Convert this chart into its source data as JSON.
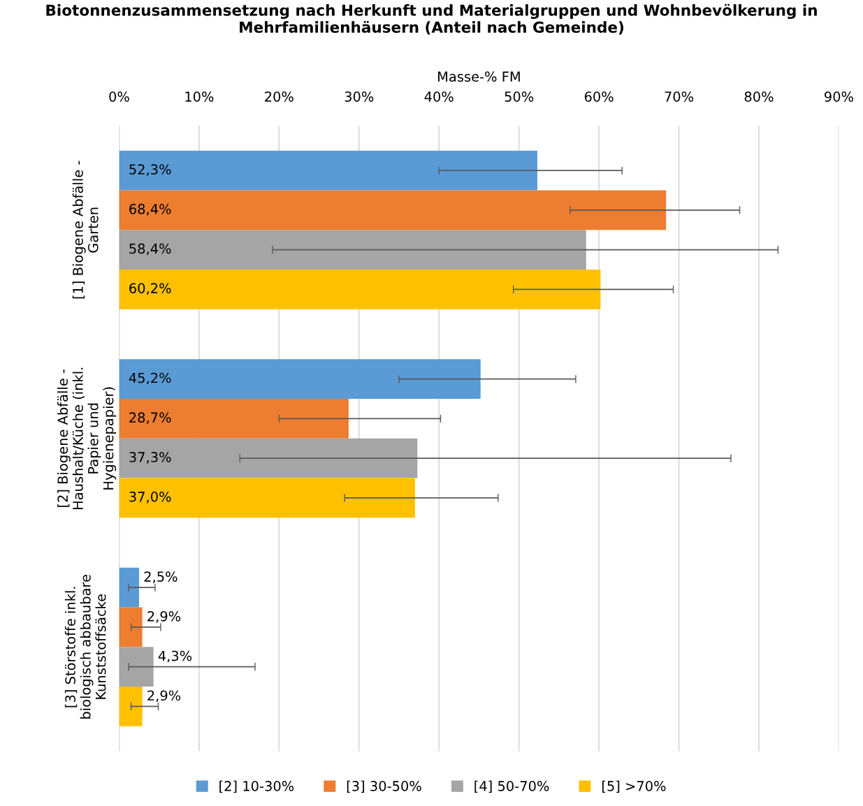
{
  "chart_data": {
    "type": "bar",
    "orientation": "horizontal",
    "title": "Biotonnenzusammensetzung nach Herkunft und Materialgruppen und Wohnbevölkerung in Mehrfamilienhäusern (Anteil nach Gemeinde)",
    "xlabel": "Masse-% FM",
    "categories": [
      "[1] Biogene Abfälle - Garten",
      "[2] Biogene Abfälle - Haushalt/Küche (inkl. Papier und Hygienepapier)",
      "[3] Störstoffe inkl. biologisch abbaubare Kunststoffsäcke"
    ],
    "series": [
      {
        "name": "[2] 10-30%",
        "color": "#5b9bd5",
        "values": [
          52.3,
          45.2,
          2.5
        ],
        "value_labels": [
          "52,3%",
          "45,2%",
          "2,5%"
        ],
        "errors": [
          [
            40.0,
            62.9
          ],
          [
            35.0,
            57.1
          ],
          [
            1.2,
            4.5
          ]
        ]
      },
      {
        "name": "[3] 30-50%",
        "color": "#ed7d31",
        "values": [
          68.4,
          28.7,
          2.9
        ],
        "value_labels": [
          "68,4%",
          "28,7%",
          "2,9%"
        ],
        "errors": [
          [
            56.4,
            77.6
          ],
          [
            20.0,
            40.2
          ],
          [
            1.5,
            5.2
          ]
        ]
      },
      {
        "name": "[4] 50-70%",
        "color": "#a5a5a5",
        "values": [
          58.4,
          37.3,
          4.3
        ],
        "value_labels": [
          "58,4%",
          "37,3%",
          "4,3%"
        ],
        "errors": [
          [
            19.2,
            82.4
          ],
          [
            15.1,
            76.5
          ],
          [
            1.2,
            17.0
          ]
        ]
      },
      {
        "name": "[5] >70%",
        "color": "#ffc000",
        "values": [
          60.2,
          37.0,
          2.9
        ],
        "value_labels": [
          "60,2%",
          "37,0%",
          "2,9%"
        ],
        "errors": [
          [
            49.3,
            69.3
          ],
          [
            28.2,
            47.4
          ],
          [
            1.5,
            4.9
          ]
        ]
      }
    ],
    "xlim": [
      0,
      90
    ],
    "xticks": [
      {
        "value": 0,
        "label": "0%"
      },
      {
        "value": 10,
        "label": "10%"
      },
      {
        "value": 20,
        "label": "20%"
      },
      {
        "value": 30,
        "label": "30%"
      },
      {
        "value": 40,
        "label": "40%"
      },
      {
        "value": 50,
        "label": "50%"
      },
      {
        "value": 60,
        "label": "60%"
      },
      {
        "value": 70,
        "label": "70%"
      },
      {
        "value": 80,
        "label": "80%"
      },
      {
        "value": 90,
        "label": "90%"
      }
    ],
    "grid": "x",
    "legend": "bottom"
  }
}
